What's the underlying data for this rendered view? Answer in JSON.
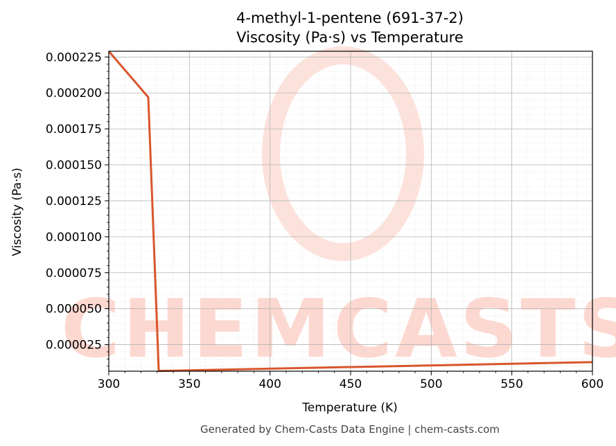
{
  "chart_data": {
    "type": "line",
    "title": "4-methyl-1-pentene (691-37-2)",
    "subtitle": "Viscosity (Pa·s) vs Temperature",
    "xlabel": "Temperature (K)",
    "ylabel": "Viscosity (Pa·s)",
    "xlim": [
      300,
      600
    ],
    "ylim": [
      6.5e-06,
      0.000229
    ],
    "x_ticks": [
      300,
      350,
      400,
      450,
      500,
      550,
      600
    ],
    "x_tick_labels": [
      "300",
      "350",
      "400",
      "450",
      "500",
      "550",
      "600"
    ],
    "y_ticks": [
      2.5e-05,
      5e-05,
      7.5e-05,
      0.0001,
      0.000125,
      0.00015,
      0.000175,
      0.0002,
      0.000225
    ],
    "y_tick_labels": [
      "0.000025",
      "0.000050",
      "0.000075",
      "0.000100",
      "0.000125",
      "0.000150",
      "0.000175",
      "0.000200",
      "0.000225"
    ],
    "grid": true,
    "series": [
      {
        "color": "#d9552b",
        "x": [
          300,
          324.5,
          331,
          600
        ],
        "y": [
          0.000229,
          0.000197,
          6.7e-06,
          1.28e-05
        ]
      }
    ]
  },
  "watermark": {
    "text": "CHEMCASTS",
    "color": "#fdd8d0"
  },
  "footer": "Generated by Chem-Casts Data Engine | chem-casts.com"
}
